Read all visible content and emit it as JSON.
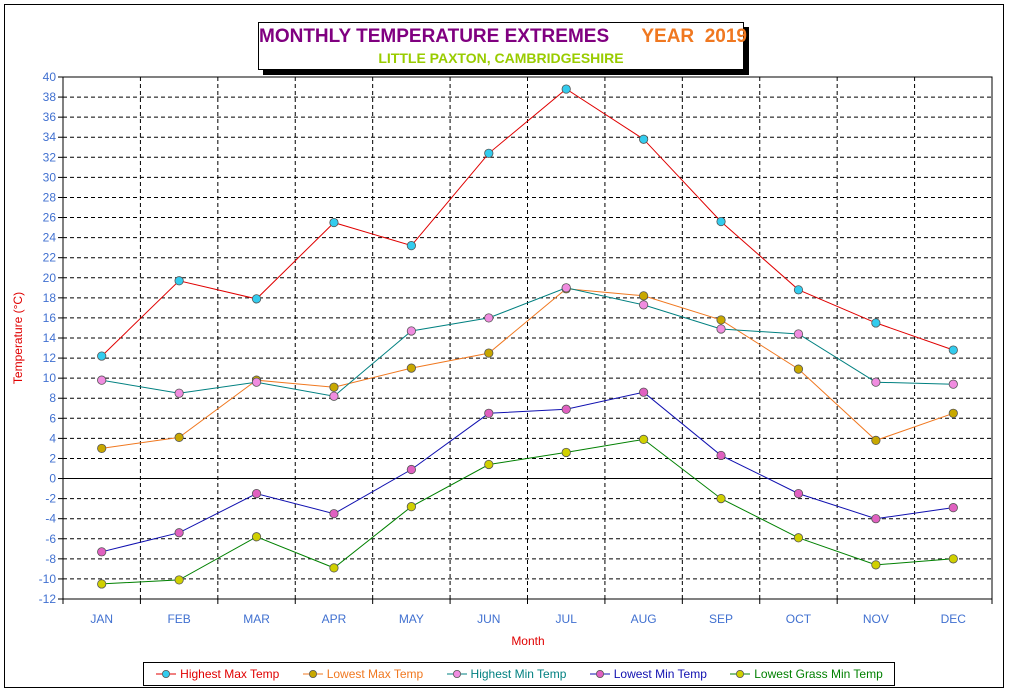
{
  "header": {
    "title": "MONTHLY TEMPERATURE EXTREMES",
    "year_label": "YEAR  2019",
    "subtitle": "LITTLE PAXTON, CAMBRIDGESHIRE",
    "colors": {
      "title": "#800080",
      "year": "#f07820",
      "subtitle": "#99cc00"
    }
  },
  "chart_data": {
    "type": "line",
    "title": "MONTHLY TEMPERATURE EXTREMES    YEAR  2019",
    "subtitle": "LITTLE PAXTON, CAMBRIDGESHIRE",
    "xlabel": "Month",
    "ylabel": "Temperature (°C)",
    "ylim": [
      -12,
      40
    ],
    "ystep": 2,
    "grid": true,
    "legend_position": "bottom",
    "categories": [
      "JAN",
      "FEB",
      "MAR",
      "APR",
      "MAY",
      "JUN",
      "JUL",
      "AUG",
      "SEP",
      "OCT",
      "NOV",
      "DEC"
    ],
    "series": [
      {
        "name": "Highest Max Temp",
        "line_color": "#e00000",
        "marker_color": "#33ccee",
        "values": [
          12.2,
          19.7,
          17.9,
          25.5,
          23.2,
          32.4,
          38.8,
          33.8,
          25.6,
          18.8,
          15.5,
          12.8
        ]
      },
      {
        "name": "Lowest Max Temp",
        "line_color": "#f07820",
        "marker_color": "#c8a800",
        "values": [
          3.0,
          4.1,
          9.8,
          9.1,
          11.0,
          12.5,
          18.9,
          18.2,
          15.8,
          10.9,
          3.8,
          6.5
        ]
      },
      {
        "name": "Highest Min Temp",
        "line_color": "#008080",
        "marker_color": "#f08ce0",
        "values": [
          9.8,
          8.5,
          9.6,
          8.2,
          14.7,
          16.0,
          19.0,
          17.3,
          14.9,
          14.4,
          9.6,
          9.4
        ]
      },
      {
        "name": "Lowest Min Temp",
        "line_color": "#1010b0",
        "marker_color": "#e060c0",
        "values": [
          -7.3,
          -5.4,
          -1.5,
          -3.5,
          0.9,
          6.5,
          6.9,
          8.6,
          2.3,
          -1.5,
          -4.0,
          -2.9
        ]
      },
      {
        "name": "Lowest Grass Min Temp",
        "line_color": "#008000",
        "marker_color": "#d0d000",
        "values": [
          -10.5,
          -10.1,
          -5.8,
          -8.9,
          -2.8,
          1.4,
          2.6,
          3.9,
          -2.0,
          -5.9,
          -8.6,
          -8.0
        ]
      }
    ],
    "colors": {
      "axis_labels": "#4070d0",
      "axis_titles": "#e00000"
    }
  }
}
